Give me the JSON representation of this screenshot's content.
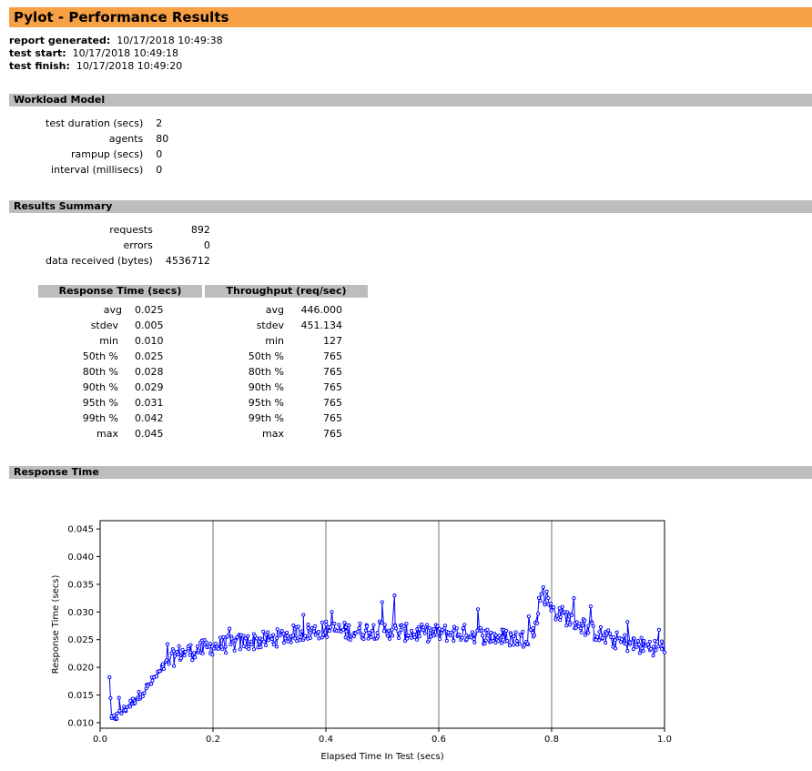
{
  "title": "Pylot - Performance Results",
  "meta": {
    "generated_label": "report generated:",
    "generated_value": "10/17/2018 10:49:38",
    "start_label": "test start:",
    "start_value": "10/17/2018 10:49:18",
    "finish_label": "test finish:",
    "finish_value": "10/17/2018 10:49:20"
  },
  "workload": {
    "heading": "Workload Model",
    "rows": [
      {
        "label": "test duration (secs)",
        "value": "2"
      },
      {
        "label": "agents",
        "value": "80"
      },
      {
        "label": "rampup (secs)",
        "value": "0"
      },
      {
        "label": "interval (millisecs)",
        "value": "0"
      }
    ]
  },
  "summary": {
    "heading": "Results Summary",
    "rows": [
      {
        "label": "requests",
        "value": "892"
      },
      {
        "label": "errors",
        "value": "0"
      },
      {
        "label": "data received (bytes)",
        "value": "4536712"
      }
    ]
  },
  "response_time": {
    "heading": "Response Time (secs)",
    "rows": [
      {
        "label": "avg",
        "value": "0.025"
      },
      {
        "label": "stdev",
        "value": "0.005"
      },
      {
        "label": "min",
        "value": "0.010"
      },
      {
        "label": "50th %",
        "value": "0.025"
      },
      {
        "label": "80th %",
        "value": "0.028"
      },
      {
        "label": "90th %",
        "value": "0.029"
      },
      {
        "label": "95th %",
        "value": "0.031"
      },
      {
        "label": "99th %",
        "value": "0.042"
      },
      {
        "label": "max",
        "value": "0.045"
      }
    ]
  },
  "throughput": {
    "heading": "Throughput (req/sec)",
    "rows": [
      {
        "label": "avg",
        "value": "446.000"
      },
      {
        "label": "stdev",
        "value": "451.134"
      },
      {
        "label": "min",
        "value": "127"
      },
      {
        "label": "50th %",
        "value": "765"
      },
      {
        "label": "80th %",
        "value": "765"
      },
      {
        "label": "90th %",
        "value": "765"
      },
      {
        "label": "95th %",
        "value": "765"
      },
      {
        "label": "99th %",
        "value": "765"
      },
      {
        "label": "max",
        "value": "765"
      }
    ]
  },
  "chart_section": {
    "heading": "Response Time"
  },
  "chart_data": {
    "type": "line",
    "xlabel": "Elapsed Time In Test (secs)",
    "ylabel": "Response Time (secs)",
    "xlim": [
      0.0,
      1.0
    ],
    "ylim": [
      0.009,
      0.0465
    ],
    "xticks": [
      "0.0",
      "0.2",
      "0.4",
      "0.6",
      "0.8",
      "1.0"
    ],
    "yticks": [
      "0.010",
      "0.015",
      "0.020",
      "0.025",
      "0.030",
      "0.035",
      "0.040",
      "0.045"
    ],
    "grid": true,
    "line_color": "#0000ff",
    "trend": {
      "x": [
        0.016,
        0.017,
        0.02,
        0.03,
        0.05,
        0.08,
        0.1,
        0.12,
        0.14,
        0.16,
        0.2,
        0.25,
        0.3,
        0.35,
        0.4,
        0.45,
        0.5,
        0.55,
        0.6,
        0.65,
        0.7,
        0.75,
        0.77,
        0.78,
        0.8,
        0.85,
        0.9,
        0.95,
        1.0
      ],
      "y": [
        0.0115,
        0.0165,
        0.0105,
        0.0112,
        0.013,
        0.016,
        0.0185,
        0.021,
        0.0225,
        0.0228,
        0.0238,
        0.0245,
        0.025,
        0.0262,
        0.0268,
        0.0265,
        0.0268,
        0.0262,
        0.0262,
        0.0262,
        0.0255,
        0.0252,
        0.0265,
        0.033,
        0.0305,
        0.0278,
        0.0252,
        0.024,
        0.0235
      ]
    },
    "spikes": {
      "x": [
        0.017,
        0.032,
        0.12,
        0.23,
        0.36,
        0.41,
        0.52,
        0.5,
        0.67,
        0.76,
        0.785,
        0.79,
        0.84,
        0.87,
        0.935,
        0.99
      ],
      "y": [
        0.0182,
        0.0145,
        0.0242,
        0.027,
        0.0295,
        0.03,
        0.033,
        0.0318,
        0.0305,
        0.0292,
        0.0345,
        0.0337,
        0.0325,
        0.031,
        0.0282,
        0.0268
      ]
    },
    "n_points": 892,
    "noise_amplitude": 0.0016
  }
}
